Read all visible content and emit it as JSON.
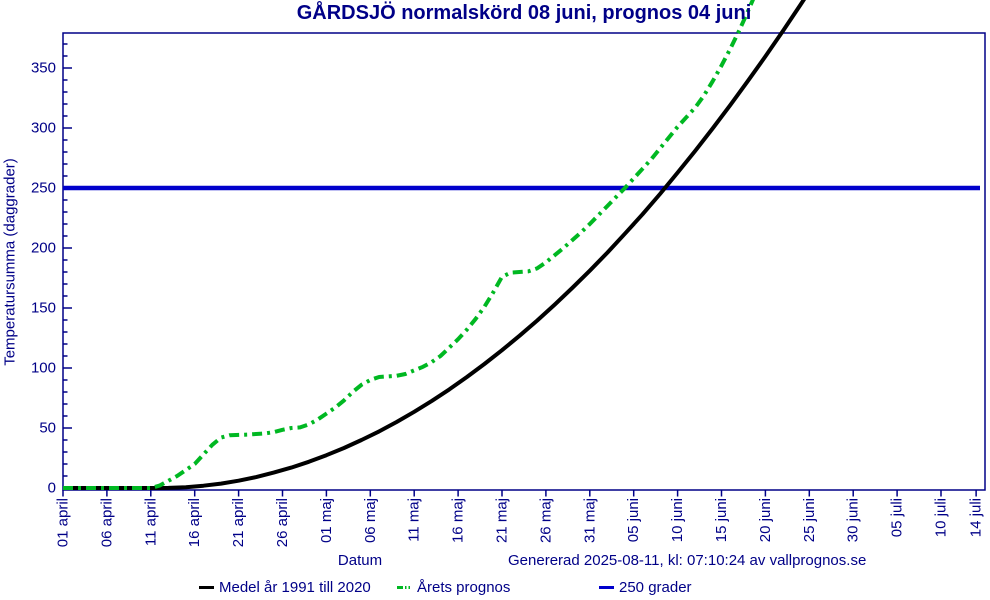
{
  "title": "GÅRDSJÖ normalskörd 08 juni, prognos 04 juni",
  "footer": {
    "xlabel": "Datum",
    "generated": "Genererad 2025-08-11, kl: 07:10:24 av vallprognos.se"
  },
  "legend": [
    {
      "label": "Medel år 1991 till 2020",
      "color": "#000000",
      "style": "solid"
    },
    {
      "label": "Årets prognos",
      "color": "#00b822",
      "style": "dash-dot"
    },
    {
      "label": "250 grader",
      "color": "#0000cc",
      "style": "solid"
    }
  ],
  "colors": {
    "axis": "#000087",
    "tick_labels": "#000087",
    "title": "#000087",
    "normal_series": "#000000",
    "forecast_series": "#00b822",
    "reference_line": "#0000cc",
    "background": "#ffffff"
  },
  "chart_data": {
    "type": "line",
    "title": "GÅRDSJÖ normalskörd 08 juni, prognos 04 juni",
    "xlabel": "Datum",
    "ylabel": "Temperatursumma (daggrader)",
    "ylim": [
      0,
      380
    ],
    "grid": false,
    "legend_position": "bottom",
    "y_major_ticks": [
      0,
      50,
      100,
      150,
      200,
      250,
      300,
      350
    ],
    "y_minor_step": 10,
    "x_unit": "days since 01 april",
    "x_range_days": [
      0,
      105
    ],
    "x_tick_days": [
      0,
      5,
      10,
      15,
      20,
      25,
      30,
      35,
      40,
      45,
      50,
      55,
      60,
      65,
      70,
      75,
      80,
      85,
      90,
      95,
      100,
      104
    ],
    "x_tick_labels": [
      "01 april",
      "06 april",
      "11 april",
      "16 april",
      "21 april",
      "26 april",
      "01 maj",
      "06 maj",
      "11 maj",
      "16 maj",
      "21 maj",
      "26 maj",
      "31 maj",
      "05 juni",
      "10 juni",
      "15 juni",
      "20 juni",
      "25 juni",
      "30 juni",
      "05 juli",
      "10 juli",
      "14 juli"
    ],
    "reference_line": {
      "label": "250 grader",
      "value": 250,
      "color": "#0000cc"
    },
    "annotations": {
      "normal_harvest_date": "08 juni",
      "forecast_harvest_date": "04 juni"
    },
    "series": [
      {
        "name": "Medel år 1991 till 2020",
        "color": "#000000",
        "dash": "solid",
        "points": [
          [
            0,
            0
          ],
          [
            11,
            0
          ],
          [
            12,
            0.1
          ],
          [
            14,
            0.7
          ],
          [
            16,
            1.9
          ],
          [
            18,
            3.7
          ],
          [
            20,
            6.1
          ],
          [
            22,
            9.1
          ],
          [
            24,
            12.8
          ],
          [
            26,
            17
          ],
          [
            28,
            21.8
          ],
          [
            30,
            27.3
          ],
          [
            32,
            33.3
          ],
          [
            34,
            40
          ],
          [
            36,
            47.2
          ],
          [
            38,
            55
          ],
          [
            40,
            63.5
          ],
          [
            42,
            72.6
          ],
          [
            44,
            82.2
          ],
          [
            46,
            92.5
          ],
          [
            48,
            103.3
          ],
          [
            50,
            114.8
          ],
          [
            52,
            126.9
          ],
          [
            54,
            139.5
          ],
          [
            56,
            152.8
          ],
          [
            58,
            166.7
          ],
          [
            60,
            181.1
          ],
          [
            62,
            196.2
          ],
          [
            64,
            211.9
          ],
          [
            66,
            228.1
          ],
          [
            68,
            245
          ],
          [
            70,
            262.8
          ],
          [
            72,
            280.9
          ],
          [
            74,
            299.7
          ],
          [
            76,
            319.1
          ],
          [
            78,
            339.1
          ],
          [
            80,
            359.7
          ],
          [
            82,
            380.9
          ],
          [
            84,
            402.7
          ],
          [
            86,
            425.2
          ]
        ]
      },
      {
        "name": "Årets prognos",
        "color": "#00b822",
        "dash": "dash-dot",
        "points": [
          [
            0,
            0
          ],
          [
            10,
            0
          ],
          [
            11,
            2
          ],
          [
            12,
            6
          ],
          [
            13,
            10
          ],
          [
            14,
            15
          ],
          [
            15,
            20
          ],
          [
            16,
            28
          ],
          [
            17,
            36
          ],
          [
            18,
            42
          ],
          [
            19,
            44
          ],
          [
            21,
            44.5
          ],
          [
            23,
            45.5
          ],
          [
            24,
            46.5
          ],
          [
            25,
            48.5
          ],
          [
            26,
            50
          ],
          [
            27,
            50.5
          ],
          [
            28,
            53
          ],
          [
            29,
            57
          ],
          [
            30,
            62
          ],
          [
            31,
            67
          ],
          [
            32,
            73
          ],
          [
            33,
            80
          ],
          [
            34,
            86
          ],
          [
            35,
            90
          ],
          [
            36,
            92.5
          ],
          [
            38,
            93.5
          ],
          [
            39,
            95
          ],
          [
            40,
            98
          ],
          [
            41,
            101
          ],
          [
            42,
            105
          ],
          [
            43,
            110
          ],
          [
            44,
            117
          ],
          [
            45,
            124
          ],
          [
            46,
            132
          ],
          [
            47,
            141
          ],
          [
            48,
            151
          ],
          [
            49,
            163
          ],
          [
            50,
            176
          ],
          [
            51,
            179.5
          ],
          [
            53,
            180.5
          ],
          [
            54,
            183
          ],
          [
            55,
            188
          ],
          [
            56,
            194
          ],
          [
            57,
            200
          ],
          [
            58,
            206.5
          ],
          [
            59,
            213
          ],
          [
            60,
            220
          ],
          [
            61,
            227.5
          ],
          [
            62,
            235
          ],
          [
            63,
            242.5
          ],
          [
            64,
            250
          ],
          [
            65,
            258
          ],
          [
            66,
            266
          ],
          [
            67,
            274
          ],
          [
            68,
            283
          ],
          [
            69,
            292
          ],
          [
            70,
            301
          ],
          [
            71,
            309
          ],
          [
            72,
            317
          ],
          [
            73,
            327
          ],
          [
            74,
            339
          ],
          [
            75,
            352
          ],
          [
            76,
            366
          ],
          [
            77,
            381
          ],
          [
            78,
            397
          ],
          [
            79,
            414
          ]
        ]
      }
    ]
  }
}
